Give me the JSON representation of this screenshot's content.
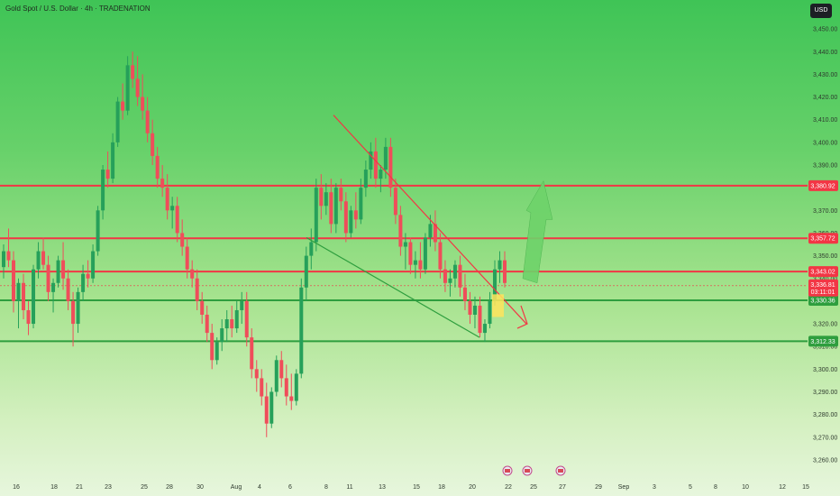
{
  "header": {
    "title": "Gold Spot / U.S. Dollar · 4h · TRADENATION",
    "currency_button": "USD"
  },
  "chart_data": {
    "type": "candlestick",
    "title": "Gold Spot / U.S. Dollar · 4h · TRADENATION",
    "ylim": [
      3256,
      3458
    ],
    "y_ticks": [
      3260,
      3270,
      3280,
      3290,
      3300,
      3310,
      3320,
      3330,
      3340,
      3350,
      3360,
      3370,
      3380,
      3390,
      3400,
      3410,
      3420,
      3430,
      3440,
      3450
    ],
    "y_tick_labels": [
      "3,260.00",
      "3,270.00",
      "3,280.00",
      "3,290.00",
      "3,300.00",
      "3,310.00",
      "3,320.00",
      "3,330.00",
      "3,340.00",
      "3,350.00",
      "3,360.00",
      "3,370.00",
      "3,380.00",
      "3,390.00",
      "3,400.00",
      "3,410.00",
      "3,420.00",
      "3,430.00",
      "3,440.00",
      "3,450.00"
    ],
    "x_tick_labels": [
      "16",
      "18",
      "21",
      "23",
      "25",
      "28",
      "30",
      "Aug",
      "4",
      "6",
      "8",
      "11",
      "13",
      "15",
      "18",
      "20",
      "22",
      "25",
      "27",
      "29",
      "Sep",
      "3",
      "5",
      "8",
      "10",
      "12",
      "15"
    ],
    "horizontal_levels": [
      {
        "value": 3380.92,
        "label": "3,380.92",
        "color": "#f23645"
      },
      {
        "value": 3357.72,
        "label": "3,357.72",
        "color": "#f23645"
      },
      {
        "value": 3343.02,
        "label": "3,343.02",
        "color": "#f23645"
      },
      {
        "value": 3330.36,
        "label": "3,330.36",
        "color": "#2e9e3e"
      },
      {
        "value": 3312.33,
        "label": "3,312.33",
        "color": "#2e9e3e"
      }
    ],
    "last_price": {
      "value": 3336.81,
      "label": "3,336.81",
      "countdown": "03:11:01"
    },
    "candles": [
      [
        3345,
        3355,
        3340,
        3352
      ],
      [
        3352,
        3362,
        3345,
        3348
      ],
      [
        3348,
        3352,
        3325,
        3330
      ],
      [
        3330,
        3340,
        3318,
        3338
      ],
      [
        3338,
        3342,
        3322,
        3326
      ],
      [
        3326,
        3330,
        3315,
        3320
      ],
      [
        3320,
        3346,
        3318,
        3344
      ],
      [
        3344,
        3356,
        3340,
        3352
      ],
      [
        3352,
        3358,
        3344,
        3346
      ],
      [
        3346,
        3350,
        3330,
        3334
      ],
      [
        3334,
        3340,
        3325,
        3338
      ],
      [
        3338,
        3350,
        3336,
        3348
      ],
      [
        3348,
        3356,
        3335,
        3340
      ],
      [
        3340,
        3344,
        3326,
        3330
      ],
      [
        3330,
        3334,
        3310,
        3320
      ],
      [
        3320,
        3336,
        3316,
        3334
      ],
      [
        3334,
        3346,
        3330,
        3342
      ],
      [
        3342,
        3348,
        3336,
        3340
      ],
      [
        3340,
        3355,
        3338,
        3352
      ],
      [
        3352,
        3372,
        3350,
        3370
      ],
      [
        3370,
        3390,
        3366,
        3388
      ],
      [
        3388,
        3396,
        3380,
        3384
      ],
      [
        3384,
        3404,
        3382,
        3400
      ],
      [
        3400,
        3420,
        3398,
        3418
      ],
      [
        3418,
        3426,
        3410,
        3414
      ],
      [
        3414,
        3438,
        3412,
        3434
      ],
      [
        3434,
        3440,
        3424,
        3428
      ],
      [
        3428,
        3438,
        3416,
        3420
      ],
      [
        3420,
        3430,
        3410,
        3414
      ],
      [
        3414,
        3420,
        3400,
        3404
      ],
      [
        3404,
        3410,
        3390,
        3394
      ],
      [
        3394,
        3398,
        3380,
        3384
      ],
      [
        3384,
        3390,
        3376,
        3380
      ],
      [
        3380,
        3386,
        3366,
        3370
      ],
      [
        3370,
        3376,
        3362,
        3372
      ],
      [
        3372,
        3376,
        3356,
        3360
      ],
      [
        3360,
        3366,
        3350,
        3354
      ],
      [
        3354,
        3358,
        3340,
        3344
      ],
      [
        3344,
        3348,
        3336,
        3340
      ],
      [
        3340,
        3344,
        3326,
        3330
      ],
      [
        3330,
        3334,
        3320,
        3324
      ],
      [
        3324,
        3328,
        3312,
        3316
      ],
      [
        3316,
        3320,
        3300,
        3304
      ],
      [
        3304,
        3314,
        3302,
        3312
      ],
      [
        3312,
        3322,
        3308,
        3318
      ],
      [
        3318,
        3326,
        3312,
        3322
      ],
      [
        3322,
        3328,
        3314,
        3318
      ],
      [
        3318,
        3330,
        3316,
        3326
      ],
      [
        3326,
        3334,
        3320,
        3330
      ],
      [
        3330,
        3334,
        3310,
        3314
      ],
      [
        3314,
        3318,
        3296,
        3300
      ],
      [
        3300,
        3304,
        3290,
        3296
      ],
      [
        3296,
        3300,
        3284,
        3288
      ],
      [
        3288,
        3294,
        3270,
        3276
      ],
      [
        3276,
        3292,
        3274,
        3290
      ],
      [
        3290,
        3306,
        3288,
        3304
      ],
      [
        3304,
        3308,
        3292,
        3296
      ],
      [
        3296,
        3302,
        3284,
        3288
      ],
      [
        3288,
        3298,
        3282,
        3286
      ],
      [
        3286,
        3300,
        3284,
        3298
      ],
      [
        3298,
        3340,
        3296,
        3336
      ],
      [
        3336,
        3354,
        3330,
        3350
      ],
      [
        3350,
        3362,
        3344,
        3356
      ],
      [
        3356,
        3384,
        3352,
        3380
      ],
      [
        3380,
        3386,
        3366,
        3372
      ],
      [
        3372,
        3382,
        3368,
        3378
      ],
      [
        3378,
        3384,
        3360,
        3364
      ],
      [
        3364,
        3382,
        3360,
        3380
      ],
      [
        3380,
        3384,
        3370,
        3374
      ],
      [
        3374,
        3378,
        3356,
        3360
      ],
      [
        3360,
        3372,
        3358,
        3370
      ],
      [
        3370,
        3378,
        3362,
        3366
      ],
      [
        3366,
        3384,
        3364,
        3380
      ],
      [
        3380,
        3392,
        3376,
        3388
      ],
      [
        3388,
        3400,
        3384,
        3396
      ],
      [
        3396,
        3402,
        3380,
        3384
      ],
      [
        3384,
        3390,
        3378,
        3388
      ],
      [
        3388,
        3402,
        3384,
        3398
      ],
      [
        3398,
        3402,
        3376,
        3380
      ],
      [
        3380,
        3384,
        3364,
        3368
      ],
      [
        3368,
        3372,
        3350,
        3354
      ],
      [
        3354,
        3360,
        3344,
        3356
      ],
      [
        3356,
        3358,
        3342,
        3346
      ],
      [
        3346,
        3352,
        3340,
        3348
      ],
      [
        3348,
        3356,
        3340,
        3344
      ],
      [
        3344,
        3360,
        3342,
        3358
      ],
      [
        3358,
        3368,
        3354,
        3364
      ],
      [
        3364,
        3370,
        3352,
        3356
      ],
      [
        3356,
        3360,
        3340,
        3344
      ],
      [
        3344,
        3348,
        3334,
        3338
      ],
      [
        3338,
        3344,
        3332,
        3340
      ],
      [
        3340,
        3348,
        3336,
        3346
      ],
      [
        3346,
        3350,
        3332,
        3336
      ],
      [
        3336,
        3342,
        3326,
        3330
      ],
      [
        3330,
        3334,
        3320,
        3324
      ],
      [
        3324,
        3332,
        3318,
        3328
      ],
      [
        3328,
        3332,
        3314,
        3316
      ],
      [
        3316,
        3322,
        3312,
        3320
      ],
      [
        3320,
        3334,
        3318,
        3330
      ],
      [
        3330,
        3348,
        3328,
        3344
      ],
      [
        3344,
        3352,
        3338,
        3348
      ],
      [
        3348,
        3352,
        3336,
        3338
      ]
    ],
    "annotations": [
      "downtrend channel (red/green lines)",
      "red down arrow",
      "green up arrow",
      "yellow highlight zone"
    ],
    "event_icons": [
      "flag-icon",
      "flag-icon",
      "flag-icon"
    ]
  }
}
